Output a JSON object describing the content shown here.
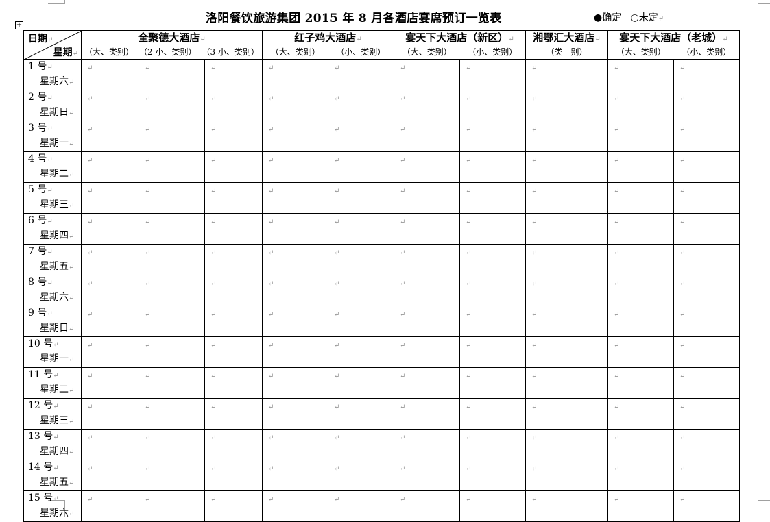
{
  "title": "洛阳餐饮旅游集团 2015 年 8 月各酒店宴席预订一览表",
  "legend": {
    "confirmed": "●确定",
    "pending": "○未定"
  },
  "corner": {
    "top": "日期",
    "bottom": "星期"
  },
  "hotels": [
    {
      "name": "全聚德大酒店",
      "subs": [
        "（大、类别）",
        "（2 小、类别）",
        "（3 小、类别）"
      ]
    },
    {
      "name": "红子鸡大酒店",
      "subs": [
        "（大、类别）",
        "（小、类别）"
      ]
    },
    {
      "name": "宴天下大酒店（新区）",
      "subs": [
        "（大、类别）",
        "（小、类别）"
      ]
    },
    {
      "name": "湘鄂汇大酒店",
      "subs": [
        "（类　别）"
      ]
    },
    {
      "name": "宴天下大酒店（老城）",
      "subs": [
        "（大、类别）",
        "（小、类别）"
      ]
    }
  ],
  "rows": [
    {
      "day": "1 号",
      "weekday": "星期六"
    },
    {
      "day": "2 号",
      "weekday": "星期日"
    },
    {
      "day": "3 号",
      "weekday": "星期一"
    },
    {
      "day": "4 号",
      "weekday": "星期二"
    },
    {
      "day": "5 号",
      "weekday": "星期三"
    },
    {
      "day": "6 号",
      "weekday": "星期四"
    },
    {
      "day": "7 号",
      "weekday": "星期五"
    },
    {
      "day": "8 号",
      "weekday": "星期六"
    },
    {
      "day": "9 号",
      "weekday": "星期日"
    },
    {
      "day": "10 号",
      "weekday": "星期一"
    },
    {
      "day": "11 号",
      "weekday": "星期二"
    },
    {
      "day": "12 号",
      "weekday": "星期三"
    },
    {
      "day": "13 号",
      "weekday": "星期四"
    },
    {
      "day": "14 号",
      "weekday": "星期五"
    },
    {
      "day": "15 号",
      "weekday": "星期六"
    }
  ]
}
